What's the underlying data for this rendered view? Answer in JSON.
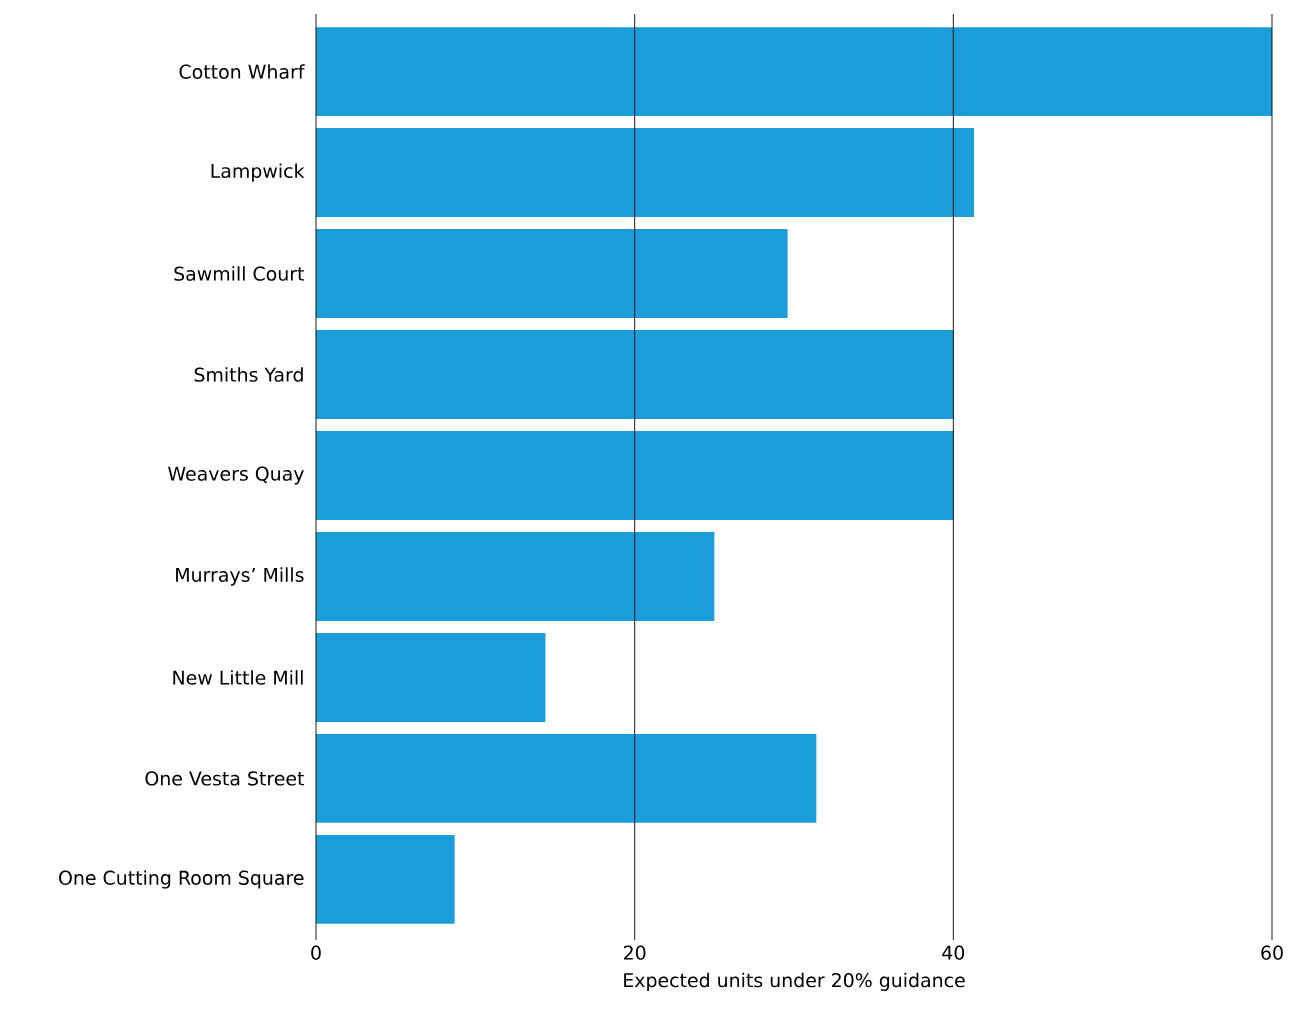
{
  "chart_data": {
    "type": "bar",
    "orientation": "horizontal",
    "xlabel": "Expected units under 20% guidance",
    "categories": [
      "Cotton Wharf",
      "Lampwick",
      "Sawmill Court",
      "Smiths Yard",
      "Weavers Quay",
      "Murrays’ Mills",
      "New Little Mill",
      "One Vesta Street",
      "One Cutting Room Square"
    ],
    "values": [
      60,
      41.3,
      29.6,
      40,
      40,
      25,
      14.4,
      31.4,
      8.7
    ],
    "color": "#1b9dd9",
    "xlim": [
      0,
      60
    ],
    "xticks": [
      0,
      20,
      40,
      60
    ],
    "grid": "x"
  }
}
